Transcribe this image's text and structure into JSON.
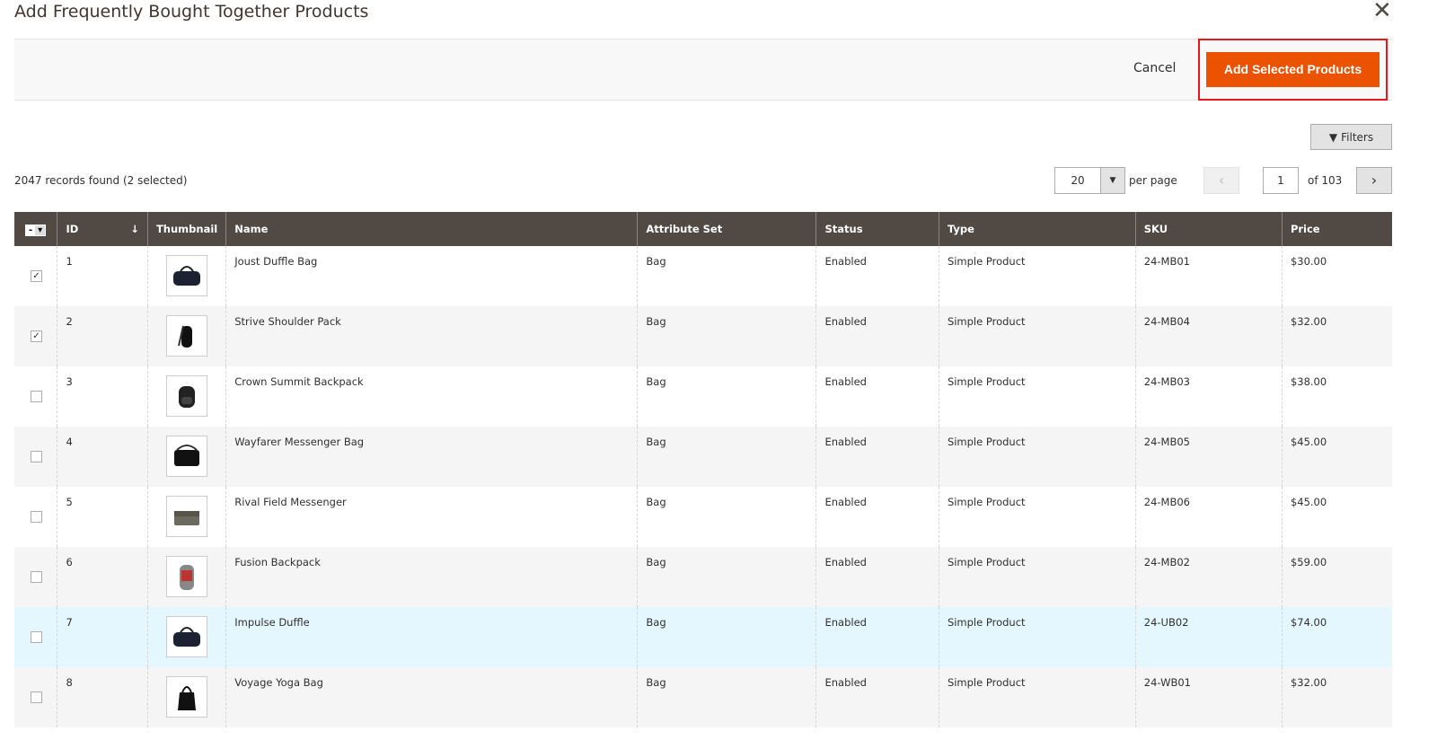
{
  "modal": {
    "title": "Add Frequently Bought Together Products",
    "close_icon": "close-icon"
  },
  "actions": {
    "cancel": "Cancel",
    "add": "Add Selected Products",
    "accent": "#eb5202"
  },
  "toolbar": {
    "filters": "Filters",
    "records": "2047 records found (2 selected)",
    "per_page_value": "20",
    "per_page_label": "per page",
    "page": "1",
    "of_pages": "of 103"
  },
  "columns": [
    "ID",
    "Thumbnail",
    "Name",
    "Attribute Set",
    "Status",
    "Type",
    "SKU",
    "Price"
  ],
  "rows": [
    {
      "checked": true,
      "id": "1",
      "name": "Joust Duffle Bag",
      "attr": "Bag",
      "status": "Enabled",
      "type": "Simple Product",
      "sku": "24-MB01",
      "price": "$30.00",
      "thumb": "duffle"
    },
    {
      "checked": true,
      "id": "2",
      "name": "Strive Shoulder Pack",
      "attr": "Bag",
      "status": "Enabled",
      "type": "Simple Product",
      "sku": "24-MB04",
      "price": "$32.00",
      "thumb": "pack"
    },
    {
      "checked": false,
      "id": "3",
      "name": "Crown Summit Backpack",
      "attr": "Bag",
      "status": "Enabled",
      "type": "Simple Product",
      "sku": "24-MB03",
      "price": "$38.00",
      "thumb": "backpack"
    },
    {
      "checked": false,
      "id": "4",
      "name": "Wayfarer Messenger Bag",
      "attr": "Bag",
      "status": "Enabled",
      "type": "Simple Product",
      "sku": "24-MB05",
      "price": "$45.00",
      "thumb": "messenger"
    },
    {
      "checked": false,
      "id": "5",
      "name": "Rival Field Messenger",
      "attr": "Bag",
      "status": "Enabled",
      "type": "Simple Product",
      "sku": "24-MB06",
      "price": "$45.00",
      "thumb": "field"
    },
    {
      "checked": false,
      "id": "6",
      "name": "Fusion Backpack",
      "attr": "Bag",
      "status": "Enabled",
      "type": "Simple Product",
      "sku": "24-MB02",
      "price": "$59.00",
      "thumb": "fusion"
    },
    {
      "checked": false,
      "id": "7",
      "name": "Impulse Duffle",
      "attr": "Bag",
      "status": "Enabled",
      "type": "Simple Product",
      "sku": "24-UB02",
      "price": "$74.00",
      "thumb": "duffle"
    },
    {
      "checked": false,
      "id": "8",
      "name": "Voyage Yoga Bag",
      "attr": "Bag",
      "status": "Enabled",
      "type": "Simple Product",
      "sku": "24-WB01",
      "price": "$32.00",
      "thumb": "tote"
    }
  ]
}
